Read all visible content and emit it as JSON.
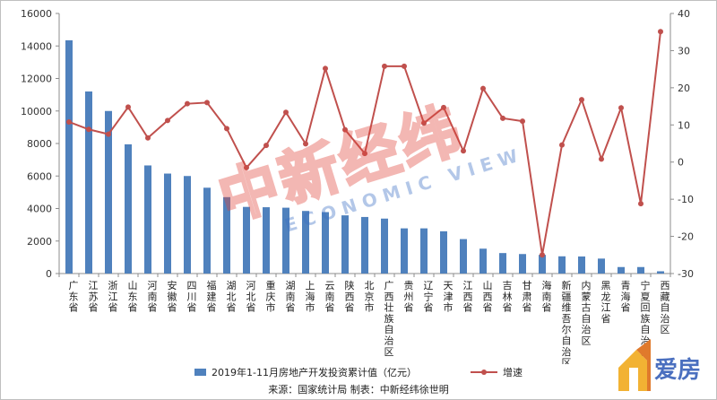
{
  "chart_data": {
    "type": "bar+line",
    "categories": [
      "广东省",
      "江苏省",
      "浙江省",
      "山东省",
      "河南省",
      "安徽省",
      "四川省",
      "福建省",
      "湖北省",
      "河北省",
      "重庆市",
      "湖南省",
      "上海市",
      "云南省",
      "陕西省",
      "北京市",
      "广西壮族自治区",
      "贵州省",
      "辽宁省",
      "天津市",
      "江西省",
      "山西省",
      "吉林省",
      "甘肃省",
      "海南省",
      "新疆维吾尔自治区",
      "内蒙古自治区",
      "黑龙江省",
      "青海省",
      "宁夏回族自治区",
      "西藏自治区"
    ],
    "series": [
      {
        "name": "2019年1-11月房地产开发投资累计值（亿元）",
        "type": "bar",
        "axis": "left",
        "color": "#4f81bd",
        "values": [
          14350,
          11200,
          10000,
          7950,
          6650,
          6150,
          6000,
          5280,
          4700,
          4100,
          4080,
          4050,
          3850,
          3780,
          3580,
          3480,
          3380,
          2780,
          2780,
          2600,
          2120,
          1530,
          1260,
          1200,
          1150,
          1060,
          1050,
          920,
          400,
          400,
          140
        ]
      },
      {
        "name": "增速",
        "type": "line",
        "axis": "right",
        "color": "#c0504d",
        "values": [
          10.8,
          8.8,
          7.5,
          14.8,
          6.5,
          11.2,
          15.7,
          16.0,
          9.0,
          -1.5,
          4.5,
          13.4,
          4.9,
          25.2,
          8.7,
          2.3,
          25.8,
          25.8,
          10.5,
          14.7,
          3.0,
          19.8,
          11.8,
          11.0,
          -25.0,
          4.6,
          16.8,
          0.8,
          14.6,
          -11.2,
          35.1
        ]
      }
    ],
    "left_axis": {
      "min": 0,
      "max": 16000,
      "step": 2000
    },
    "right_axis": {
      "min": -30,
      "max": 40,
      "step": 10
    },
    "legend_position": "bottom",
    "grid": false
  },
  "source_text": "来源：国家统计局  制表：中新经纬徐世明",
  "watermark": {
    "cn": "中新经纬",
    "en": "ECONOMIC VIEW"
  },
  "logo": {
    "text": "爱房"
  }
}
